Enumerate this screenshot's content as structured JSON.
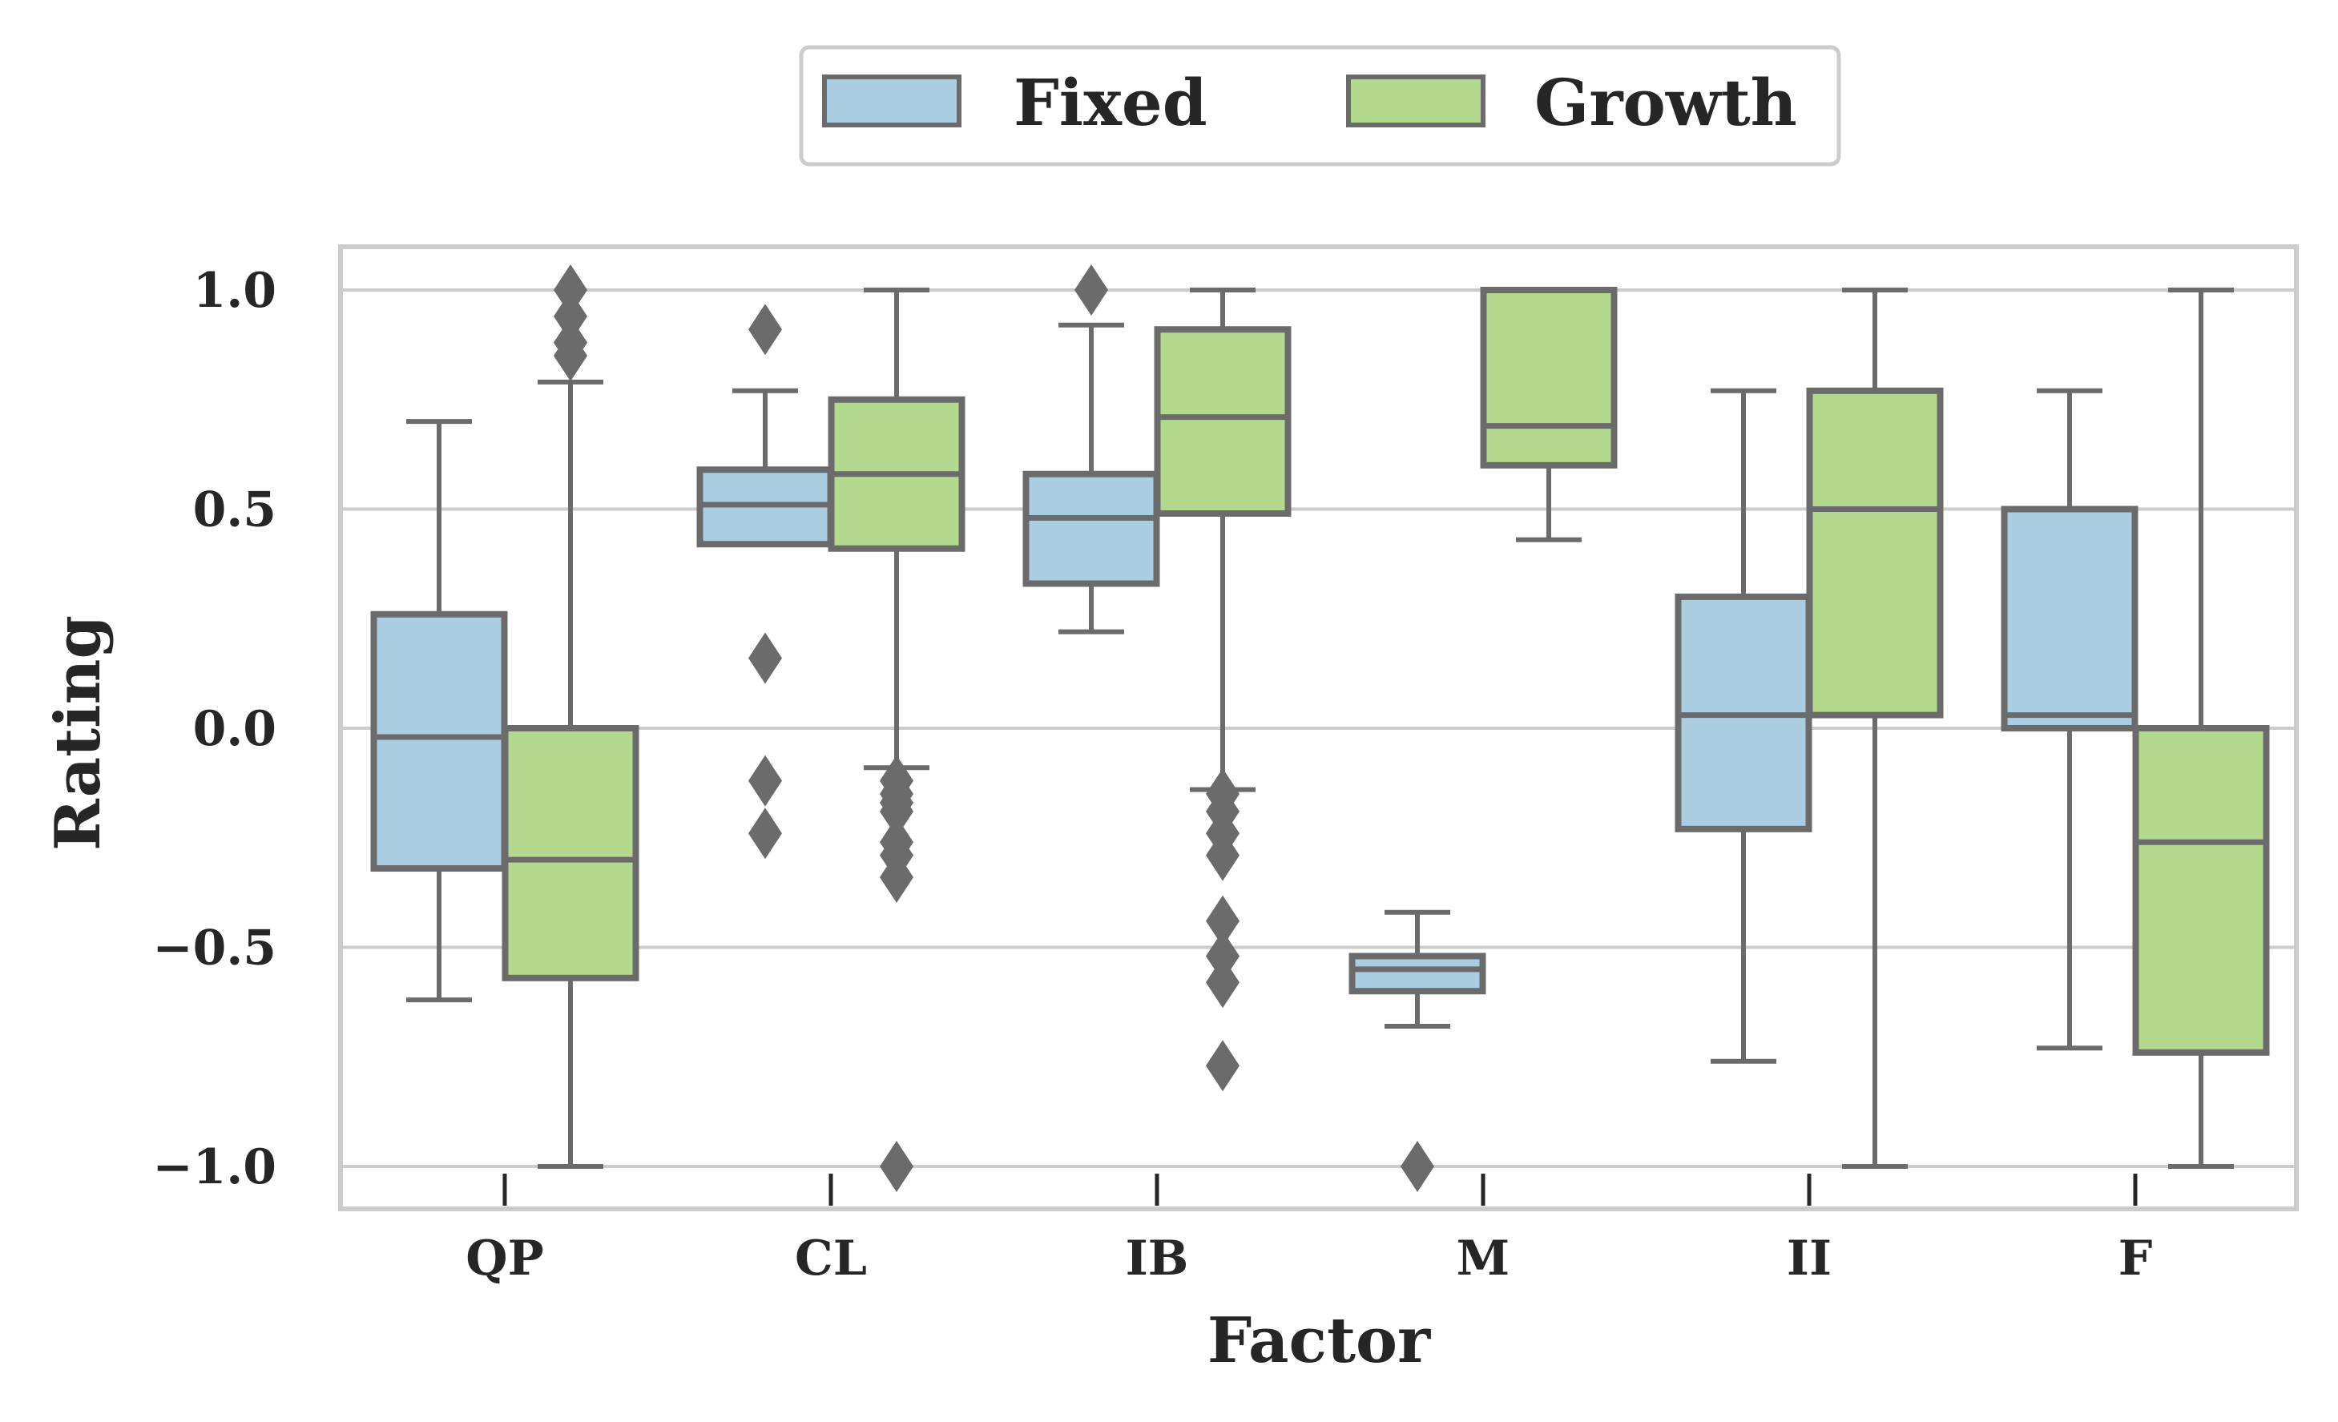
{
  "chart_data": {
    "type": "box",
    "xlabel": "Factor",
    "ylabel": "Rating",
    "ylim": [
      -1.1,
      1.1
    ],
    "yticks": [
      -1.0,
      -0.5,
      0.0,
      0.5,
      1.0
    ],
    "ytick_labels": [
      "−1.0",
      "−0.5",
      "0.0",
      "0.5",
      "1.0"
    ],
    "categories": [
      "QP",
      "CL",
      "IB",
      "M",
      "II",
      "F"
    ],
    "grid": true,
    "legend_position": "top-center",
    "colors": {
      "Fixed": "#abcde2",
      "Growth": "#b3d98f",
      "edge": "#6b6b6b",
      "grid": "#cccccc",
      "frame": "#cccccc"
    },
    "series": [
      {
        "name": "Fixed",
        "boxes": [
          {
            "category": "QP",
            "whislo": -0.62,
            "q1": -0.32,
            "median": -0.02,
            "q3": 0.26,
            "whishi": 0.7,
            "fliers": []
          },
          {
            "category": "CL",
            "whislo": 0.42,
            "q1": 0.42,
            "median": 0.51,
            "q3": 0.59,
            "whishi": 0.77,
            "fliers": [
              0.91,
              0.16,
              -0.12,
              -0.24
            ]
          },
          {
            "category": "IB",
            "whislo": 0.22,
            "q1": 0.33,
            "median": 0.48,
            "q3": 0.58,
            "whishi": 0.92,
            "fliers": [
              1.0
            ]
          },
          {
            "category": "M",
            "whislo": -0.68,
            "q1": -0.6,
            "median": -0.55,
            "q3": -0.52,
            "whishi": -0.42,
            "fliers": [
              -1.0
            ]
          },
          {
            "category": "II",
            "whislo": -0.76,
            "q1": -0.23,
            "median": 0.03,
            "q3": 0.3,
            "whishi": 0.77,
            "fliers": []
          },
          {
            "category": "F",
            "whislo": -0.73,
            "q1": 0.0,
            "median": 0.03,
            "q3": 0.5,
            "whishi": 0.77,
            "fliers": []
          }
        ]
      },
      {
        "name": "Growth",
        "boxes": [
          {
            "category": "QP",
            "whislo": -1.0,
            "q1": -0.57,
            "median": -0.3,
            "q3": 0.0,
            "whishi": 0.79,
            "fliers": [
              0.85,
              0.88,
              0.94,
              1.0
            ]
          },
          {
            "category": "CL",
            "whislo": -0.09,
            "q1": 0.41,
            "median": 0.58,
            "q3": 0.75,
            "whishi": 1.0,
            "fliers": [
              -0.12,
              -0.15,
              -0.17,
              -0.19,
              -0.26,
              -0.29,
              -0.34,
              -1.0
            ]
          },
          {
            "category": "IB",
            "whislo": -0.14,
            "q1": 0.49,
            "median": 0.71,
            "q3": 0.91,
            "whishi": 1.0,
            "fliers": [
              -0.15,
              -0.19,
              -0.24,
              -0.29,
              -0.44,
              -0.52,
              -0.58,
              -0.77
            ]
          },
          {
            "category": "M",
            "whislo": 0.43,
            "q1": 0.6,
            "median": 0.69,
            "q3": 1.0,
            "whishi": 1.0,
            "fliers": []
          },
          {
            "category": "II",
            "whislo": -1.0,
            "q1": 0.03,
            "median": 0.5,
            "q3": 0.77,
            "whishi": 1.0,
            "fliers": []
          },
          {
            "category": "F",
            "whislo": -1.0,
            "q1": -0.74,
            "median": -0.26,
            "q3": 0.0,
            "whishi": 1.0,
            "fliers": []
          }
        ]
      }
    ]
  }
}
